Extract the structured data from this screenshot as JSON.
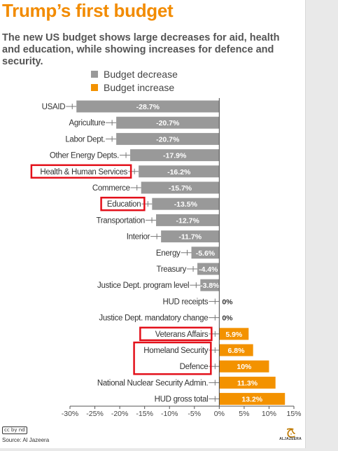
{
  "header": {
    "title": "Trump’s first budget",
    "subtitle": "The new US budget shows large decreases for aid, health and education, while showing increases for defence and security."
  },
  "legend": [
    {
      "label": "Budget decrease",
      "color": "#999999"
    },
    {
      "label": "Budget increase",
      "color": "#f39200"
    }
  ],
  "footer": {
    "license_badge": "cc by nd",
    "source": "Source: Al Jazeera",
    "brand_text": "ALJAZEERA"
  },
  "colors": {
    "decrease": "#999999",
    "increase": "#f39200",
    "highlight": "#e3101a",
    "axis": "#555555"
  },
  "chart_data": {
    "type": "bar",
    "orientation": "horizontal",
    "categories": [
      "USAID",
      "Agriculture",
      "Labor Dept.",
      "Other Energy Depts.",
      "Health & Human Services",
      "Commerce",
      "Education",
      "Transportation",
      "Interior",
      "Energy",
      "Treasury",
      "Justice Dept. program level",
      "HUD receipts",
      "Justice Dept. mandatory change",
      "Veterans Affairs",
      "Homeland Security",
      "Defence",
      "National Nuclear Security Admin.",
      "HUD gross total"
    ],
    "values": [
      -28.7,
      -20.7,
      -20.7,
      -17.9,
      -16.2,
      -15.7,
      -13.5,
      -12.7,
      -11.7,
      -5.6,
      -4.4,
      -3.8,
      0,
      0,
      5.9,
      6.8,
      10,
      11.3,
      13.2
    ],
    "value_labels": [
      "-28.7%",
      "-20.7%",
      "-20.7%",
      "-17.9%",
      "-16.2%",
      "-15.7%",
      "-13.5%",
      "-12.7%",
      "-11.7%",
      "-5.6%",
      "-4.4%",
      "-3.8%",
      "0%",
      "0%",
      "5.9%",
      "6.8%",
      "10%",
      "11.3%",
      "13.2%"
    ],
    "highlighted_categories": [
      "Health & Human Services",
      "Education",
      "Veterans Affairs"
    ],
    "highlighted_group": [
      "Homeland Security",
      "Defence"
    ],
    "xlim": [
      -30,
      15
    ],
    "xticks": [
      -30,
      -25,
      -20,
      -15,
      -10,
      -5,
      0,
      5,
      10,
      15
    ],
    "xtick_labels": [
      "-30%",
      "-25%",
      "-20%",
      "-15%",
      "-10%",
      "-5%",
      "0%",
      "5%",
      "10%",
      "15%"
    ],
    "title": "Trump’s first budget",
    "xlabel": "",
    "ylabel": "",
    "grid": false,
    "legend_position": "top"
  }
}
